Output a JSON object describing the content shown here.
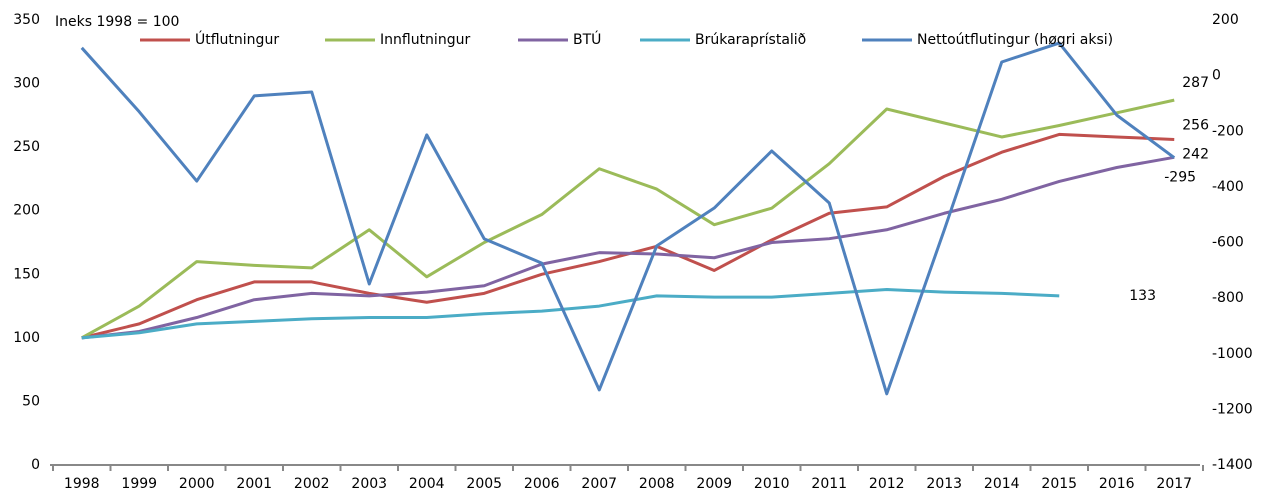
{
  "chart_data": {
    "type": "line",
    "annotation": "Ineks 1998 = 100",
    "categories": [
      "1998",
      "1999",
      "2000",
      "2001",
      "2002",
      "2003",
      "2004",
      "2005",
      "2006",
      "2007",
      "2008",
      "2009",
      "2010",
      "2011",
      "2012",
      "2013",
      "2014",
      "2015",
      "2016",
      "2017"
    ],
    "series": [
      {
        "name": "Útflutningur",
        "color": "#c0504d",
        "values": [
          100,
          111,
          130,
          144,
          144,
          135,
          128,
          135,
          150,
          160,
          172,
          153,
          177,
          198,
          203,
          227,
          246,
          260,
          258,
          256
        ]
      },
      {
        "name": "Innflutningur",
        "color": "#9bbb59",
        "values": [
          100,
          125,
          160,
          157,
          155,
          185,
          148,
          175,
          197,
          233,
          217,
          189,
          202,
          237,
          280,
          269,
          258,
          267,
          277,
          287
        ]
      },
      {
        "name": "BTÚ",
        "color": "#8064a2",
        "values": [
          100,
          105,
          116,
          130,
          135,
          133,
          136,
          141,
          158,
          167,
          166,
          163,
          175,
          178,
          185,
          198,
          209,
          223,
          234,
          242
        ]
      },
      {
        "name": "Brúkaraprístalið",
        "color": "#4bacc6",
        "values": [
          100,
          104,
          111,
          113,
          115,
          116,
          116,
          119,
          121,
          125,
          133,
          132,
          132,
          135,
          138,
          136,
          135,
          133,
          null,
          null
        ]
      },
      {
        "name": "Nettoútflutingur (høgri aksi)",
        "color": "#4f81bd",
        "axis": "y2",
        "values": [
          100,
          -130,
          -379,
          -73,
          -59,
          -749,
          -213,
          -587,
          -674,
          -1130,
          -612,
          -476,
          -271,
          -458,
          -1144,
          -555,
          49,
          117,
          -142,
          -295
        ]
      }
    ],
    "ylim": [
      0,
      350
    ],
    "yticks": [
      0,
      50,
      100,
      150,
      200,
      250,
      300,
      350
    ],
    "y2lim": [
      -1400,
      200
    ],
    "y2ticks": [
      -1400,
      -1200,
      -1000,
      -800,
      -600,
      -400,
      -200,
      0,
      200
    ],
    "grid": false,
    "legend": "top"
  }
}
